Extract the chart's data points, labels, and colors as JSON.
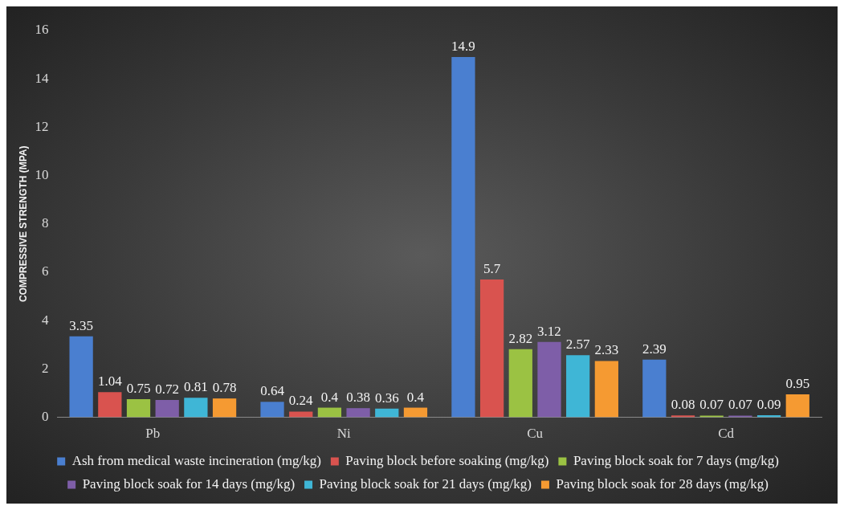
{
  "chart_data": {
    "type": "bar",
    "ylabel": "COMPRESSIVE STRENGTH (MPA)",
    "categories": [
      "Pb",
      "Ni",
      "Cu",
      "Cd"
    ],
    "series": [
      {
        "name": "Ash from medical waste incineration (mg/kg)",
        "color": "#4a7fd0",
        "values": [
          3.35,
          0.64,
          14.9,
          2.39
        ]
      },
      {
        "name": "Paving block before soaking (mg/kg)",
        "color": "#d9534f",
        "values": [
          1.04,
          0.24,
          5.7,
          0.08
        ]
      },
      {
        "name": "Paving block soak for 7 days (mg/kg)",
        "color": "#9bc243",
        "values": [
          0.75,
          0.4,
          2.82,
          0.07
        ]
      },
      {
        "name": "Paving block soak for 14 days (mg/kg)",
        "color": "#7e5ea8",
        "values": [
          0.72,
          0.38,
          3.12,
          0.07
        ]
      },
      {
        "name": "Paving block soak for 21 days (mg/kg)",
        "color": "#3fb6d6",
        "values": [
          0.81,
          0.36,
          2.57,
          0.09
        ]
      },
      {
        "name": "Paving block soak for 28 days (mg/kg)",
        "color": "#f59a32",
        "values": [
          0.78,
          0.4,
          2.33,
          0.95
        ]
      }
    ],
    "ylim": [
      0,
      16
    ],
    "yticks": [
      0,
      2,
      4,
      6,
      8,
      10,
      12,
      14,
      16
    ],
    "grid": false,
    "legend": "bottom",
    "data_labels": true
  }
}
